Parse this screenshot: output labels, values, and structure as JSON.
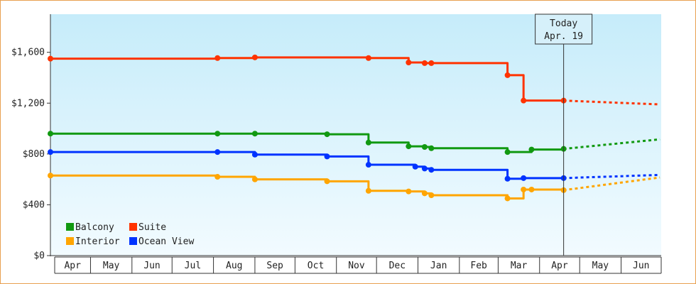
{
  "chart_data": {
    "type": "line",
    "ylim": [
      0,
      1900
    ],
    "y_ticks": [
      {
        "value": 0,
        "label": "$0"
      },
      {
        "value": 400,
        "label": "$400"
      },
      {
        "value": 800,
        "label": "$800"
      },
      {
        "value": 1200,
        "label": "$1,200"
      },
      {
        "value": 1600,
        "label": "$1,600"
      }
    ],
    "x_range": [
      "2023-04-01",
      "2024-06-30"
    ],
    "months": [
      {
        "label": "Apr",
        "start": "2023-04-01"
      },
      {
        "label": "May",
        "start": "2023-05-01"
      },
      {
        "label": "Jun",
        "start": "2023-06-01"
      },
      {
        "label": "Jul",
        "start": "2023-07-01"
      },
      {
        "label": "Aug",
        "start": "2023-08-01"
      },
      {
        "label": "Sep",
        "start": "2023-09-01"
      },
      {
        "label": "Oct",
        "start": "2023-10-01"
      },
      {
        "label": "Nov",
        "start": "2023-11-01"
      },
      {
        "label": "Dec",
        "start": "2023-12-01"
      },
      {
        "label": "Jan",
        "start": "2024-01-01"
      },
      {
        "label": "Feb",
        "start": "2024-02-01"
      },
      {
        "label": "Mar",
        "start": "2024-03-01"
      },
      {
        "label": "Apr",
        "start": "2024-04-01"
      },
      {
        "label": "May",
        "start": "2024-05-01"
      },
      {
        "label": "Jun",
        "start": "2024-06-01"
      }
    ],
    "today": {
      "date": "2024-04-19",
      "label_line1": "Today",
      "label_line2": "Apr. 19"
    },
    "grid": false,
    "legend_position": "bottom-left",
    "legend": [
      {
        "name": "Balcony",
        "color": "#119911"
      },
      {
        "name": "Suite",
        "color": "#ff3300"
      },
      {
        "name": "Interior",
        "color": "#ffa500"
      },
      {
        "name": "Ocean View",
        "color": "#0033ff"
      }
    ],
    "series": [
      {
        "name": "Suite",
        "color": "#ff3300",
        "points": [
          [
            "2023-04-01",
            1550
          ],
          [
            "2023-08-04",
            1555
          ],
          [
            "2023-09-01",
            1560
          ],
          [
            "2023-11-25",
            1555
          ],
          [
            "2023-12-25",
            1520
          ],
          [
            "2024-01-06",
            1515
          ],
          [
            "2024-01-11",
            1515
          ],
          [
            "2024-03-08",
            1420
          ],
          [
            "2024-03-20",
            1220
          ],
          [
            "2024-04-19",
            1220
          ]
        ],
        "forecast": [
          [
            "2024-04-19",
            1220
          ],
          [
            "2024-06-30",
            1190
          ]
        ]
      },
      {
        "name": "Balcony",
        "color": "#119911",
        "points": [
          [
            "2023-04-01",
            960
          ],
          [
            "2023-08-04",
            960
          ],
          [
            "2023-09-01",
            960
          ],
          [
            "2023-10-25",
            955
          ],
          [
            "2023-11-25",
            890
          ],
          [
            "2023-12-25",
            860
          ],
          [
            "2024-01-06",
            855
          ],
          [
            "2024-01-11",
            845
          ],
          [
            "2024-03-08",
            815
          ],
          [
            "2024-03-26",
            835
          ],
          [
            "2024-04-19",
            840
          ]
        ],
        "forecast": [
          [
            "2024-04-19",
            840
          ],
          [
            "2024-06-30",
            915
          ]
        ]
      },
      {
        "name": "Ocean View",
        "color": "#0033ff",
        "points": [
          [
            "2023-04-01",
            815
          ],
          [
            "2023-08-04",
            815
          ],
          [
            "2023-09-01",
            795
          ],
          [
            "2023-10-25",
            780
          ],
          [
            "2023-11-25",
            715
          ],
          [
            "2023-12-30",
            700
          ],
          [
            "2024-01-06",
            685
          ],
          [
            "2024-01-11",
            675
          ],
          [
            "2024-03-08",
            605
          ],
          [
            "2024-03-20",
            610
          ],
          [
            "2024-04-19",
            610
          ]
        ],
        "forecast": [
          [
            "2024-04-19",
            610
          ],
          [
            "2024-06-30",
            635
          ]
        ]
      },
      {
        "name": "Interior",
        "color": "#ffa500",
        "points": [
          [
            "2023-04-01",
            630
          ],
          [
            "2023-08-04",
            620
          ],
          [
            "2023-09-01",
            600
          ],
          [
            "2023-10-25",
            585
          ],
          [
            "2023-11-25",
            510
          ],
          [
            "2023-12-25",
            505
          ],
          [
            "2024-01-06",
            490
          ],
          [
            "2024-01-11",
            475
          ],
          [
            "2024-03-08",
            450
          ],
          [
            "2024-03-20",
            520
          ],
          [
            "2024-03-26",
            520
          ],
          [
            "2024-04-19",
            515
          ]
        ],
        "forecast": [
          [
            "2024-04-19",
            515
          ],
          [
            "2024-06-30",
            615
          ]
        ]
      }
    ]
  }
}
